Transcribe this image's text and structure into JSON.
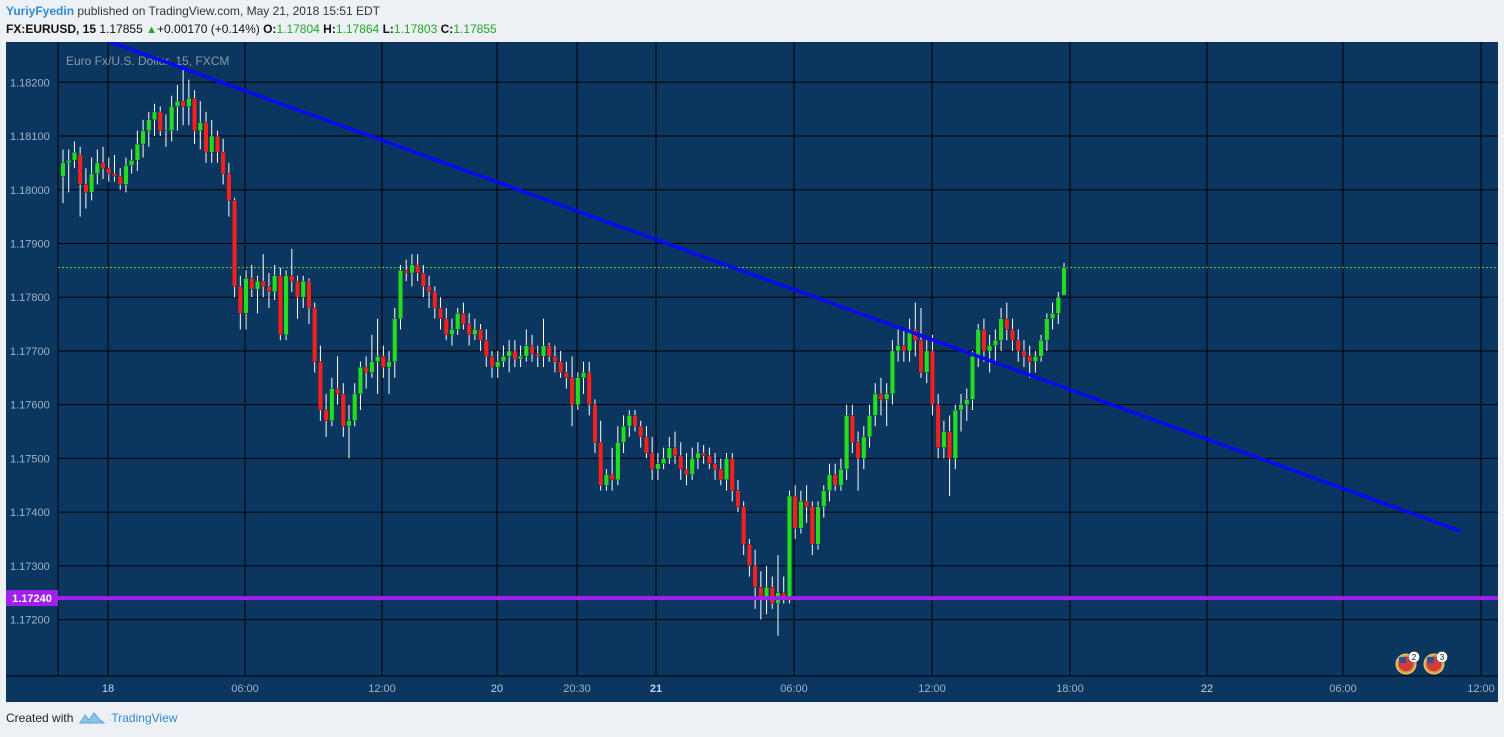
{
  "header": {
    "author": "YuriyFyedin",
    "published_text": "published on TradingView.com, May 21, 2018 15:51 EDT",
    "symbol": "FX:EURUSD, 15",
    "last": "1.17855",
    "change_arrow": "▲",
    "change": "+0.00170 (+0.14%)",
    "o_label": "O:",
    "o_value": "1.17804",
    "h_label": "H:",
    "h_value": "1.17864",
    "l_label": "L:",
    "l_value": "1.17803",
    "c_label": "C:",
    "c_value": "1.17855"
  },
  "footer": {
    "created_with": "Created with",
    "brand": "TradingView"
  },
  "colors": {
    "background": "#0b365f",
    "grid": "#000000",
    "up": "#22dd22",
    "down": "#ee2222",
    "trendline": "#0a0aee",
    "support": "#a020f0",
    "last_price_line": "#40e040"
  },
  "chart_data": {
    "type": "candlestick",
    "title": "Euro Fx/U.S. Dollar, 15, FXCM",
    "y_ticks": [
      "1.18200",
      "1.18100",
      "1.18000",
      "1.17900",
      "1.17800",
      "1.17700",
      "1.17600",
      "1.17500",
      "1.17400",
      "1.17300",
      "1.17200"
    ],
    "x_ticks": [
      "18",
      "06:00",
      "12:00",
      "20",
      "20:30",
      "21",
      "06:00",
      "12:00",
      "18:00",
      "22",
      "06:00",
      "12:00"
    ],
    "ylim": [
      1.17095,
      1.18275
    ],
    "grid": true,
    "last_price": 1.17855,
    "support_level": {
      "value": 1.1724,
      "label": "1.17240"
    },
    "trendline": {
      "from_bar": 7,
      "from_price": 1.1828,
      "to_bar": 244,
      "to_price": 1.17366
    },
    "event_badges": [
      "2",
      "3"
    ],
    "ohlc": [
      [
        1.18025,
        1.18075,
        1.17975,
        1.1805
      ],
      [
        1.1805,
        1.18075,
        1.17995,
        1.18055
      ],
      [
        1.18055,
        1.1809,
        1.1804,
        1.1807
      ],
      [
        1.18065,
        1.1808,
        1.1795,
        1.1801
      ],
      [
        1.1801,
        1.1804,
        1.17965,
        1.17995
      ],
      [
        1.17995,
        1.1806,
        1.1798,
        1.1803
      ],
      [
        1.1803,
        1.18075,
        1.1801,
        1.1805
      ],
      [
        1.1805,
        1.1808,
        1.1802,
        1.1804
      ],
      [
        1.1804,
        1.1806,
        1.18015,
        1.1803
      ],
      [
        1.1803,
        1.18065,
        1.18015,
        1.18025
      ],
      [
        1.18025,
        1.1804,
        1.18,
        1.1801
      ],
      [
        1.1801,
        1.1806,
        1.17995,
        1.18045
      ],
      [
        1.18045,
        1.18075,
        1.1803,
        1.18055
      ],
      [
        1.18055,
        1.1811,
        1.18035,
        1.18085
      ],
      [
        1.18085,
        1.1813,
        1.1806,
        1.1811
      ],
      [
        1.1811,
        1.18145,
        1.1808,
        1.1813
      ],
      [
        1.1813,
        1.1816,
        1.181,
        1.18145
      ],
      [
        1.18145,
        1.18155,
        1.181,
        1.1811
      ],
      [
        1.1811,
        1.1814,
        1.1808,
        1.1811
      ],
      [
        1.1811,
        1.18175,
        1.1809,
        1.18155
      ],
      [
        1.18155,
        1.18195,
        1.1811,
        1.18165
      ],
      [
        1.18165,
        1.18225,
        1.1812,
        1.18155
      ],
      [
        1.18155,
        1.18205,
        1.1812,
        1.1817
      ],
      [
        1.1817,
        1.18185,
        1.18085,
        1.1811
      ],
      [
        1.1811,
        1.18165,
        1.18075,
        1.18125
      ],
      [
        1.18125,
        1.18145,
        1.1805,
        1.1807
      ],
      [
        1.1807,
        1.1813,
        1.1805,
        1.181
      ],
      [
        1.181,
        1.1811,
        1.1805,
        1.1807
      ],
      [
        1.1807,
        1.18095,
        1.1801,
        1.1803
      ],
      [
        1.1803,
        1.1805,
        1.1795,
        1.1798
      ],
      [
        1.1798,
        1.17985,
        1.178,
        1.1782
      ],
      [
        1.1782,
        1.1784,
        1.1774,
        1.1777
      ],
      [
        1.1777,
        1.1785,
        1.1774,
        1.17835
      ],
      [
        1.17835,
        1.1786,
        1.178,
        1.17815
      ],
      [
        1.17815,
        1.1784,
        1.1777,
        1.1783
      ],
      [
        1.1783,
        1.1788,
        1.178,
        1.1782
      ],
      [
        1.1782,
        1.17845,
        1.1778,
        1.1781
      ],
      [
        1.1781,
        1.1786,
        1.17795,
        1.1784
      ],
      [
        1.1784,
        1.17855,
        1.1772,
        1.1773
      ],
      [
        1.1773,
        1.1785,
        1.1772,
        1.1784
      ],
      [
        1.1784,
        1.1789,
        1.1781,
        1.1783
      ],
      [
        1.1783,
        1.1784,
        1.1776,
        1.178
      ],
      [
        1.178,
        1.1784,
        1.1778,
        1.1783
      ],
      [
        1.1783,
        1.17835,
        1.1775,
        1.1778
      ],
      [
        1.1778,
        1.1779,
        1.1766,
        1.1768
      ],
      [
        1.1768,
        1.1771,
        1.1757,
        1.1759
      ],
      [
        1.1759,
        1.1762,
        1.1754,
        1.1757
      ],
      [
        1.1757,
        1.1765,
        1.1756,
        1.1763
      ],
      [
        1.1763,
        1.1769,
        1.176,
        1.1762
      ],
      [
        1.1762,
        1.1764,
        1.1754,
        1.1756
      ],
      [
        1.1756,
        1.176,
        1.175,
        1.1757
      ],
      [
        1.1757,
        1.1764,
        1.1756,
        1.1762
      ],
      [
        1.1762,
        1.1768,
        1.1759,
        1.1767
      ],
      [
        1.1767,
        1.1769,
        1.1763,
        1.1766
      ],
      [
        1.1766,
        1.1773,
        1.1765,
        1.1768
      ],
      [
        1.1768,
        1.1776,
        1.1762,
        1.1769
      ],
      [
        1.1769,
        1.1771,
        1.1765,
        1.1767
      ],
      [
        1.1767,
        1.177,
        1.1762,
        1.1768
      ],
      [
        1.1768,
        1.1778,
        1.1765,
        1.1776
      ],
      [
        1.1776,
        1.1786,
        1.1774,
        1.1785
      ],
      [
        1.1785,
        1.1787,
        1.1783,
        1.17845
      ],
      [
        1.17845,
        1.1788,
        1.1782,
        1.1786
      ],
      [
        1.1786,
        1.1788,
        1.1783,
        1.17845
      ],
      [
        1.17845,
        1.1786,
        1.178,
        1.1782
      ],
      [
        1.1782,
        1.1784,
        1.1778,
        1.1781
      ],
      [
        1.1781,
        1.1782,
        1.1776,
        1.1778
      ],
      [
        1.1778,
        1.178,
        1.1774,
        1.1776
      ],
      [
        1.1776,
        1.1778,
        1.1772,
        1.1773
      ],
      [
        1.1773,
        1.1776,
        1.1771,
        1.1774
      ],
      [
        1.1774,
        1.1778,
        1.1773,
        1.1777
      ],
      [
        1.1777,
        1.1779,
        1.1774,
        1.1775
      ],
      [
        1.1775,
        1.1777,
        1.1771,
        1.1773
      ],
      [
        1.1773,
        1.1776,
        1.1772,
        1.1774
      ],
      [
        1.1774,
        1.1775,
        1.177,
        1.1772
      ],
      [
        1.1772,
        1.1774,
        1.1767,
        1.1769
      ],
      [
        1.1769,
        1.177,
        1.1765,
        1.1767
      ],
      [
        1.1767,
        1.177,
        1.1765,
        1.1768
      ],
      [
        1.1768,
        1.1771,
        1.1767,
        1.1769
      ],
      [
        1.1769,
        1.1772,
        1.1766,
        1.177
      ],
      [
        1.177,
        1.1772,
        1.1767,
        1.17685
      ],
      [
        1.17685,
        1.1771,
        1.1767,
        1.1769
      ],
      [
        1.1769,
        1.1774,
        1.1768,
        1.1771
      ],
      [
        1.1771,
        1.1773,
        1.1768,
        1.17695
      ],
      [
        1.17695,
        1.1771,
        1.1767,
        1.1769
      ],
      [
        1.1769,
        1.1776,
        1.1767,
        1.1771
      ],
      [
        1.1771,
        1.17715,
        1.1768,
        1.1769
      ],
      [
        1.1769,
        1.1771,
        1.1766,
        1.1768
      ],
      [
        1.1768,
        1.177,
        1.1765,
        1.1766
      ],
      [
        1.1766,
        1.1768,
        1.1763,
        1.1765
      ],
      [
        1.1765,
        1.1769,
        1.1756,
        1.176
      ],
      [
        1.176,
        1.1766,
        1.1759,
        1.1765
      ],
      [
        1.1765,
        1.1768,
        1.1762,
        1.1766
      ],
      [
        1.1766,
        1.1768,
        1.1758,
        1.176
      ],
      [
        1.176,
        1.1761,
        1.1751,
        1.1753
      ],
      [
        1.1753,
        1.1757,
        1.1744,
        1.1745
      ],
      [
        1.1745,
        1.1748,
        1.1744,
        1.1747
      ],
      [
        1.1747,
        1.1752,
        1.1744,
        1.1746
      ],
      [
        1.1746,
        1.1756,
        1.1745,
        1.1753
      ],
      [
        1.1753,
        1.1758,
        1.1751,
        1.1756
      ],
      [
        1.1756,
        1.1759,
        1.1754,
        1.1758
      ],
      [
        1.1758,
        1.1759,
        1.1755,
        1.1756
      ],
      [
        1.1756,
        1.1757,
        1.1752,
        1.1754
      ],
      [
        1.1754,
        1.1756,
        1.175,
        1.1751
      ],
      [
        1.1751,
        1.1754,
        1.1746,
        1.1748
      ],
      [
        1.1748,
        1.1751,
        1.1746,
        1.1749
      ],
      [
        1.1749,
        1.1752,
        1.1748,
        1.175
      ],
      [
        1.175,
        1.1754,
        1.1749,
        1.1752
      ],
      [
        1.1752,
        1.1755,
        1.1749,
        1.17505
      ],
      [
        1.17505,
        1.1753,
        1.1746,
        1.1748
      ],
      [
        1.1748,
        1.1751,
        1.1745,
        1.1747
      ],
      [
        1.1747,
        1.1752,
        1.1746,
        1.175
      ],
      [
        1.175,
        1.1753,
        1.1748,
        1.1751
      ],
      [
        1.1751,
        1.17525,
        1.1749,
        1.17505
      ],
      [
        1.17505,
        1.1752,
        1.1748,
        1.1749
      ],
      [
        1.1749,
        1.1751,
        1.1746,
        1.1748
      ],
      [
        1.1748,
        1.175,
        1.1745,
        1.1746
      ],
      [
        1.1746,
        1.1751,
        1.1744,
        1.175
      ],
      [
        1.175,
        1.1751,
        1.1742,
        1.1744
      ],
      [
        1.1744,
        1.1746,
        1.174,
        1.1741
      ],
      [
        1.1741,
        1.1742,
        1.1732,
        1.1734
      ],
      [
        1.1734,
        1.1735,
        1.1728,
        1.173
      ],
      [
        1.173,
        1.1733,
        1.1722,
        1.1726
      ],
      [
        1.1726,
        1.1729,
        1.172,
        1.1724
      ],
      [
        1.1724,
        1.173,
        1.1721,
        1.1726
      ],
      [
        1.1726,
        1.1728,
        1.1722,
        1.1723
      ],
      [
        1.1723,
        1.1732,
        1.1717,
        1.1725
      ],
      [
        1.1725,
        1.1728,
        1.1723,
        1.1724
      ],
      [
        1.1724,
        1.1744,
        1.1723,
        1.1743
      ],
      [
        1.1743,
        1.1745,
        1.1735,
        1.1737
      ],
      [
        1.1737,
        1.1744,
        1.1736,
        1.1742
      ],
      [
        1.1742,
        1.1745,
        1.1738,
        1.1741
      ],
      [
        1.1741,
        1.1742,
        1.1732,
        1.1734
      ],
      [
        1.1734,
        1.1742,
        1.1733,
        1.1741
      ],
      [
        1.1741,
        1.1745,
        1.1739,
        1.1744
      ],
      [
        1.1744,
        1.1749,
        1.1742,
        1.1747
      ],
      [
        1.1747,
        1.1749,
        1.1744,
        1.1745
      ],
      [
        1.1745,
        1.175,
        1.1744,
        1.1748
      ],
      [
        1.1748,
        1.176,
        1.1746,
        1.1758
      ],
      [
        1.1758,
        1.176,
        1.1751,
        1.1753
      ],
      [
        1.1753,
        1.1755,
        1.1744,
        1.175
      ],
      [
        1.175,
        1.1756,
        1.1748,
        1.1754
      ],
      [
        1.1754,
        1.176,
        1.1752,
        1.1758
      ],
      [
        1.1758,
        1.1764,
        1.1756,
        1.1762
      ],
      [
        1.1762,
        1.1765,
        1.1758,
        1.1761
      ],
      [
        1.1761,
        1.1764,
        1.1756,
        1.1762
      ],
      [
        1.1762,
        1.1772,
        1.176,
        1.177
      ],
      [
        1.177,
        1.1774,
        1.1768,
        1.1771
      ],
      [
        1.1771,
        1.1774,
        1.1768,
        1.177
      ],
      [
        1.177,
        1.1776,
        1.1768,
        1.1774
      ],
      [
        1.1774,
        1.1779,
        1.1769,
        1.1772
      ],
      [
        1.1772,
        1.1778,
        1.1765,
        1.1766
      ],
      [
        1.1766,
        1.1772,
        1.1764,
        1.177
      ],
      [
        1.177,
        1.1773,
        1.1758,
        1.176
      ],
      [
        1.176,
        1.1762,
        1.175,
        1.1752
      ],
      [
        1.1752,
        1.1757,
        1.175,
        1.1755
      ],
      [
        1.1755,
        1.1758,
        1.1743,
        1.175
      ],
      [
        1.175,
        1.176,
        1.1748,
        1.1759
      ],
      [
        1.1759,
        1.1762,
        1.1755,
        1.176
      ],
      [
        1.176,
        1.1763,
        1.1757,
        1.1761
      ],
      [
        1.1761,
        1.177,
        1.1759,
        1.1769
      ],
      [
        1.1769,
        1.1775,
        1.1767,
        1.1774
      ],
      [
        1.1774,
        1.1776,
        1.1768,
        1.177
      ],
      [
        1.177,
        1.1773,
        1.1766,
        1.1771
      ],
      [
        1.1771,
        1.1774,
        1.1768,
        1.1772
      ],
      [
        1.1772,
        1.1778,
        1.177,
        1.1776
      ],
      [
        1.1776,
        1.1779,
        1.1772,
        1.1774
      ],
      [
        1.1774,
        1.1776,
        1.177,
        1.1772
      ],
      [
        1.1772,
        1.1774,
        1.1768,
        1.177
      ],
      [
        1.177,
        1.1772,
        1.1767,
        1.1769
      ],
      [
        1.1769,
        1.1771,
        1.1765,
        1.1768
      ],
      [
        1.1768,
        1.177,
        1.1766,
        1.1769
      ],
      [
        1.1769,
        1.1773,
        1.1768,
        1.1772
      ],
      [
        1.1772,
        1.1777,
        1.177,
        1.1776
      ],
      [
        1.1776,
        1.1779,
        1.1774,
        1.1777
      ],
      [
        1.1777,
        1.1781,
        1.1775,
        1.178
      ],
      [
        1.17804,
        1.17864,
        1.17803,
        1.17855
      ]
    ]
  }
}
